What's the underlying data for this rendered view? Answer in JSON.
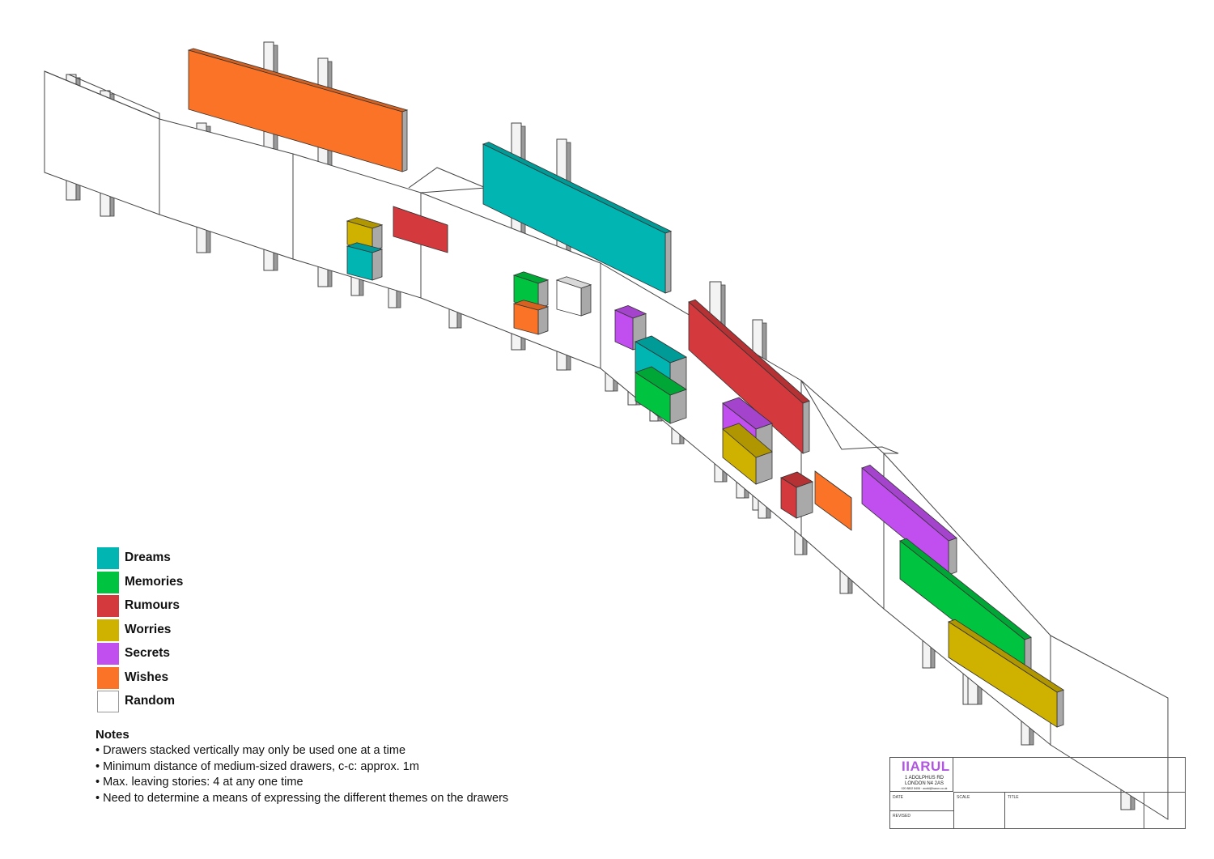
{
  "legend": {
    "items": [
      {
        "label": "Dreams",
        "color": "#00b5b2"
      },
      {
        "label": "Memories",
        "color": "#00c43f"
      },
      {
        "label": "Rumours",
        "color": "#d43a3d"
      },
      {
        "label": "Worries",
        "color": "#cfb100"
      },
      {
        "label": "Secrets",
        "color": "#c14ff0"
      },
      {
        "label": "Wishes",
        "color": "#fa7326"
      },
      {
        "label": "Random",
        "color": "#ffffff"
      }
    ]
  },
  "notes": {
    "title": "Notes",
    "lines": [
      "• Drawers stacked vertically may only be used one at a time",
      "• Minimum distance of medium-sized drawers,  c-c: approx. 1m",
      "• Max. leaving stories: 4 at any one time",
      "• Need to determine a means of expressing the different themes on  the drawers"
    ]
  },
  "title_block": {
    "logo": "IIARUL",
    "address_line1": "1 ADOLPHUS RD",
    "address_line2": "LONDON N4 2AS",
    "contact": "020 8802 8406 · world@harun.co.uk",
    "date_label": "DATE",
    "scale_label": "SCALE",
    "title_label": "TITLE",
    "revised_label": "REVISED"
  }
}
